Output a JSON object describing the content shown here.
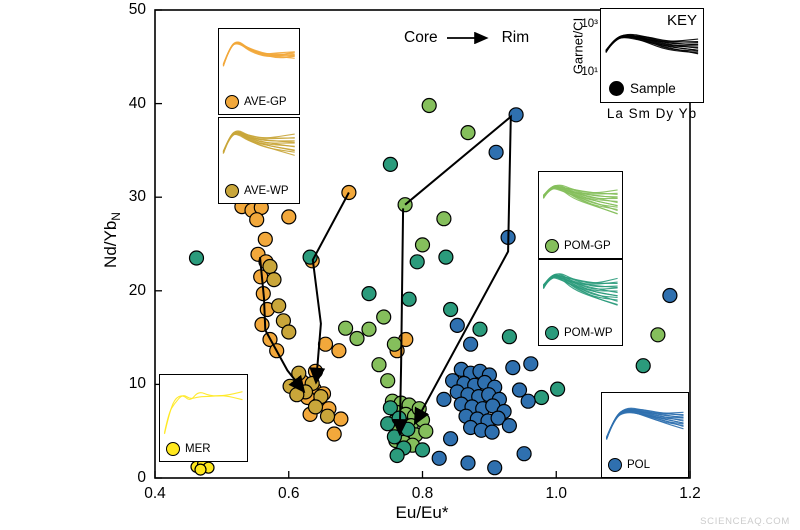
{
  "watermark": "SCIENCEAQ.COM",
  "key_inset": {
    "title": "KEY",
    "ylabel": "Garnet/CI",
    "ytick_top": "10³",
    "ytick_bottom": "10¹",
    "sample_label": "Sample",
    "xlabels": "La Sm Dy Yb",
    "color": "#000000",
    "curve": {
      "n": 13,
      "fan": 0.3,
      "jitter": 0.025,
      "base": [
        [
          0.03,
          0.55
        ],
        [
          0.12,
          0.28
        ],
        [
          0.25,
          0.22
        ],
        [
          0.45,
          0.3
        ],
        [
          0.65,
          0.42
        ],
        [
          0.97,
          0.46
        ]
      ]
    }
  },
  "groups": {
    "ave_gp": {
      "label": "AVE-GP",
      "color": "#F2A83B",
      "curve": {
        "n": 8,
        "fan": 0.1,
        "jitter": 0.02,
        "base": [
          [
            0.03,
            0.58
          ],
          [
            0.12,
            0.26
          ],
          [
            0.22,
            0.18
          ],
          [
            0.35,
            0.3
          ],
          [
            0.55,
            0.4
          ],
          [
            0.75,
            0.42
          ],
          [
            0.97,
            0.4
          ]
        ]
      }
    },
    "ave_wp": {
      "label": "AVE-WP",
      "color": "#C9A63A",
      "curve": {
        "n": 12,
        "fan": 0.34,
        "jitter": 0.02,
        "base": [
          [
            0.03,
            0.55
          ],
          [
            0.12,
            0.26
          ],
          [
            0.22,
            0.2
          ],
          [
            0.35,
            0.3
          ],
          [
            0.55,
            0.38
          ],
          [
            0.97,
            0.42
          ]
        ]
      }
    },
    "pom_gp": {
      "label": "POM-GP",
      "color": "#85BF5C",
      "curve": {
        "n": 15,
        "fan": 0.4,
        "jitter": 0.025,
        "base": [
          [
            0.03,
            0.38
          ],
          [
            0.12,
            0.22
          ],
          [
            0.24,
            0.22
          ],
          [
            0.4,
            0.32
          ],
          [
            0.65,
            0.42
          ],
          [
            0.97,
            0.48
          ]
        ]
      }
    },
    "pom_wp": {
      "label": "POM-WP",
      "color": "#2B9B7C",
      "curve": {
        "n": 15,
        "fan": 0.45,
        "jitter": 0.03,
        "base": [
          [
            0.03,
            0.42
          ],
          [
            0.12,
            0.24
          ],
          [
            0.24,
            0.24
          ],
          [
            0.4,
            0.36
          ],
          [
            0.65,
            0.48
          ],
          [
            0.97,
            0.52
          ]
        ]
      }
    },
    "mer": {
      "label": "MER",
      "color": "#FFE81E",
      "curve": {
        "n": 2,
        "fan": 0.06,
        "jitter": 0.04,
        "base": [
          [
            0.03,
            0.95
          ],
          [
            0.08,
            0.62
          ],
          [
            0.15,
            0.4
          ],
          [
            0.25,
            0.3
          ],
          [
            0.34,
            0.38
          ],
          [
            0.44,
            0.28
          ],
          [
            0.58,
            0.33
          ],
          [
            0.75,
            0.3
          ],
          [
            0.97,
            0.31
          ]
        ]
      }
    },
    "pol": {
      "label": "POL",
      "color": "#2F70AF",
      "curve": {
        "n": 14,
        "fan": 0.26,
        "jitter": 0.02,
        "base": [
          [
            0.03,
            0.75
          ],
          [
            0.13,
            0.38
          ],
          [
            0.27,
            0.25
          ],
          [
            0.47,
            0.3
          ],
          [
            0.68,
            0.38
          ],
          [
            0.97,
            0.44
          ]
        ]
      }
    }
  },
  "chart_data": {
    "type": "scatter",
    "title": "",
    "xlabel": "Eu/Eu*",
    "ylabel_main": "Nd/Yb",
    "ylabel_sub": "N",
    "xlim": [
      0.4,
      1.2
    ],
    "ylim": [
      0,
      50
    ],
    "x_ticks": [
      "0.4",
      "0.6",
      "0.8",
      "1.0",
      "1.2"
    ],
    "y_ticks": [
      "0",
      "10",
      "20",
      "30",
      "40",
      "50"
    ],
    "grid": false,
    "annotation": {
      "core": "Core",
      "rim": "Rim"
    },
    "series": [
      {
        "name": "AVE-GP",
        "color": "#F2A83B",
        "r": 7,
        "points": [
          [
            0.53,
            29.0
          ],
          [
            0.545,
            28.6
          ],
          [
            0.559,
            28.9
          ],
          [
            0.552,
            27.6
          ],
          [
            0.6,
            27.9
          ],
          [
            0.565,
            25.5
          ],
          [
            0.554,
            23.9
          ],
          [
            0.566,
            23.1
          ],
          [
            0.558,
            21.5
          ],
          [
            0.562,
            19.7
          ],
          [
            0.568,
            18.0
          ],
          [
            0.56,
            16.4
          ],
          [
            0.572,
            14.8
          ],
          [
            0.582,
            13.6
          ],
          [
            0.635,
            23.2
          ],
          [
            0.69,
            30.5
          ],
          [
            0.655,
            14.3
          ],
          [
            0.675,
            13.6
          ],
          [
            0.64,
            11.4
          ],
          [
            0.62,
            10.3
          ],
          [
            0.638,
            9.5
          ],
          [
            0.652,
            9.0
          ],
          [
            0.628,
            8.6
          ],
          [
            0.645,
            7.9
          ],
          [
            0.66,
            7.4
          ],
          [
            0.632,
            6.8
          ],
          [
            0.678,
            6.3
          ],
          [
            0.668,
            4.7
          ],
          [
            0.775,
            14.8
          ],
          [
            0.762,
            13.6
          ]
        ]
      },
      {
        "name": "AVE-WP",
        "color": "#C9A63A",
        "r": 7,
        "points": [
          [
            0.572,
            22.6
          ],
          [
            0.578,
            21.2
          ],
          [
            0.585,
            18.4
          ],
          [
            0.592,
            16.8
          ],
          [
            0.6,
            15.6
          ],
          [
            0.615,
            11.2
          ],
          [
            0.635,
            10.1
          ],
          [
            0.625,
            9.2
          ],
          [
            0.648,
            8.7
          ],
          [
            0.64,
            7.6
          ],
          [
            0.658,
            6.6
          ],
          [
            0.602,
            9.8
          ],
          [
            0.612,
            8.9
          ]
        ]
      },
      {
        "name": "POM-GP",
        "color": "#85BF5C",
        "r": 7,
        "points": [
          [
            0.81,
            39.8
          ],
          [
            0.868,
            36.9
          ],
          [
            0.774,
            29.2
          ],
          [
            0.832,
            27.7
          ],
          [
            0.8,
            24.9
          ],
          [
            0.685,
            16.0
          ],
          [
            0.702,
            14.9
          ],
          [
            0.72,
            15.9
          ],
          [
            0.742,
            17.2
          ],
          [
            0.758,
            14.3
          ],
          [
            0.735,
            12.1
          ],
          [
            0.748,
            10.4
          ],
          [
            0.755,
            8.2
          ],
          [
            0.768,
            8.0
          ],
          [
            0.78,
            7.8
          ],
          [
            0.762,
            7.0
          ],
          [
            0.775,
            6.8
          ],
          [
            0.788,
            6.6
          ],
          [
            0.758,
            6.0
          ],
          [
            0.77,
            5.8
          ],
          [
            0.783,
            5.6
          ],
          [
            0.765,
            5.0
          ],
          [
            0.778,
            4.8
          ],
          [
            0.79,
            4.6
          ],
          [
            0.76,
            4.0
          ],
          [
            0.772,
            3.8
          ],
          [
            0.785,
            3.5
          ],
          [
            0.795,
            7.4
          ],
          [
            0.8,
            6.2
          ],
          [
            0.805,
            5.0
          ],
          [
            1.152,
            15.3
          ]
        ]
      },
      {
        "name": "POM-WP",
        "color": "#2B9B7C",
        "r": 7,
        "points": [
          [
            0.462,
            23.5
          ],
          [
            0.632,
            23.6
          ],
          [
            0.752,
            33.5
          ],
          [
            0.792,
            23.1
          ],
          [
            0.835,
            23.6
          ],
          [
            0.72,
            19.7
          ],
          [
            0.78,
            19.1
          ],
          [
            0.842,
            18.0
          ],
          [
            0.886,
            15.9
          ],
          [
            0.93,
            15.1
          ],
          [
            0.995,
            15.8
          ],
          [
            1.002,
            9.5
          ],
          [
            0.978,
            8.6
          ],
          [
            0.872,
            8.8
          ],
          [
            0.752,
            7.5
          ],
          [
            0.748,
            5.8
          ],
          [
            0.765,
            6.4
          ],
          [
            0.778,
            5.2
          ],
          [
            0.758,
            4.4
          ],
          [
            0.772,
            3.2
          ],
          [
            0.762,
            2.4
          ],
          [
            0.8,
            3.0
          ],
          [
            1.13,
            12.0
          ]
        ]
      },
      {
        "name": "POL",
        "color": "#2F70AF",
        "r": 7,
        "points": [
          [
            0.94,
            38.8
          ],
          [
            0.91,
            34.8
          ],
          [
            0.928,
            25.7
          ],
          [
            1.17,
            19.5
          ],
          [
            0.852,
            16.3
          ],
          [
            0.872,
            14.3
          ],
          [
            0.962,
            12.2
          ],
          [
            0.935,
            11.8
          ],
          [
            0.858,
            11.6
          ],
          [
            0.872,
            11.2
          ],
          [
            0.886,
            11.4
          ],
          [
            0.9,
            11.0
          ],
          [
            0.845,
            10.4
          ],
          [
            0.862,
            10.1
          ],
          [
            0.878,
            9.9
          ],
          [
            0.893,
            10.2
          ],
          [
            0.908,
            9.7
          ],
          [
            0.852,
            9.2
          ],
          [
            0.868,
            8.9
          ],
          [
            0.884,
            8.7
          ],
          [
            0.899,
            8.9
          ],
          [
            0.915,
            8.4
          ],
          [
            0.945,
            9.4
          ],
          [
            0.858,
            7.9
          ],
          [
            0.874,
            7.6
          ],
          [
            0.89,
            7.4
          ],
          [
            0.905,
            7.7
          ],
          [
            0.922,
            7.1
          ],
          [
            0.958,
            8.2
          ],
          [
            0.832,
            8.4
          ],
          [
            0.865,
            6.6
          ],
          [
            0.882,
            6.3
          ],
          [
            0.898,
            6.1
          ],
          [
            0.913,
            6.4
          ],
          [
            0.872,
            5.4
          ],
          [
            0.888,
            5.1
          ],
          [
            0.904,
            4.9
          ],
          [
            0.93,
            5.6
          ],
          [
            0.842,
            4.2
          ],
          [
            0.825,
            2.1
          ],
          [
            0.868,
            1.6
          ],
          [
            0.908,
            1.1
          ],
          [
            0.952,
            2.6
          ]
        ]
      },
      {
        "name": "MER",
        "color": "#FFE81E",
        "r": 5.5,
        "points": [
          [
            0.462,
            1.2
          ],
          [
            0.472,
            1.5
          ],
          [
            0.48,
            1.1
          ],
          [
            0.468,
            0.9
          ]
        ]
      }
    ],
    "trajectories": [
      {
        "points": [
          [
            0.69,
            30.5
          ],
          [
            0.636,
            23.3
          ],
          [
            0.648,
            16.5
          ],
          [
            0.641,
            10.4
          ]
        ]
      },
      {
        "points": [
          [
            0.557,
            23.6
          ],
          [
            0.563,
            19.2
          ],
          [
            0.565,
            15.8
          ],
          [
            0.598,
            11.5
          ],
          [
            0.621,
            9.4
          ]
        ]
      },
      {
        "points": [
          [
            0.774,
            29.2
          ],
          [
            0.932,
            38.6
          ],
          [
            0.928,
            24.2
          ],
          [
            0.79,
            6.0
          ]
        ]
      },
      {
        "points": [
          [
            0.771,
            28.8
          ],
          [
            0.768,
            12.0
          ],
          [
            0.766,
            4.9
          ]
        ]
      }
    ]
  }
}
